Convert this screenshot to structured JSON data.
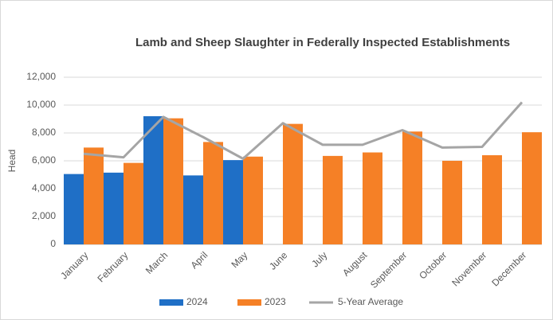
{
  "chart_data": {
    "type": "bar",
    "title": "Lamb and Sheep Slaughter in Federally Inspected Establishments",
    "y_label": "Head",
    "categories": [
      "January",
      "February",
      "March",
      "April",
      "May",
      "June",
      "July",
      "August",
      "September",
      "October",
      "November",
      "December"
    ],
    "series": [
      {
        "name": "2024",
        "type": "bar",
        "color": "#1f6fc6",
        "values": [
          5050,
          5150,
          9200,
          4950,
          6050,
          null,
          null,
          null,
          null,
          null,
          null,
          null
        ]
      },
      {
        "name": "2023",
        "type": "bar",
        "color": "#f58026",
        "values": [
          6950,
          5850,
          9050,
          7350,
          6300,
          8650,
          6350,
          6600,
          8100,
          6000,
          6400,
          8050
        ]
      },
      {
        "name": "5-Year Average",
        "type": "line",
        "color": "#a5a5a5",
        "values": [
          6500,
          6250,
          9150,
          7700,
          6150,
          8700,
          7150,
          7150,
          8200,
          6950,
          7000,
          10200
        ]
      }
    ],
    "ylim": [
      0,
      12000
    ],
    "yticks": [
      0,
      {
        "value": 2000,
        "label": "2,000"
      },
      {
        "value": 4000,
        "label": "4,000"
      },
      {
        "value": 6000,
        "label": "6,000"
      },
      {
        "value": 8000,
        "label": "8,000"
      },
      {
        "value": 10000,
        "label": "10,000"
      },
      {
        "value": 12000,
        "label": "12,000"
      }
    ],
    "grid": true,
    "legend": "bottom"
  }
}
